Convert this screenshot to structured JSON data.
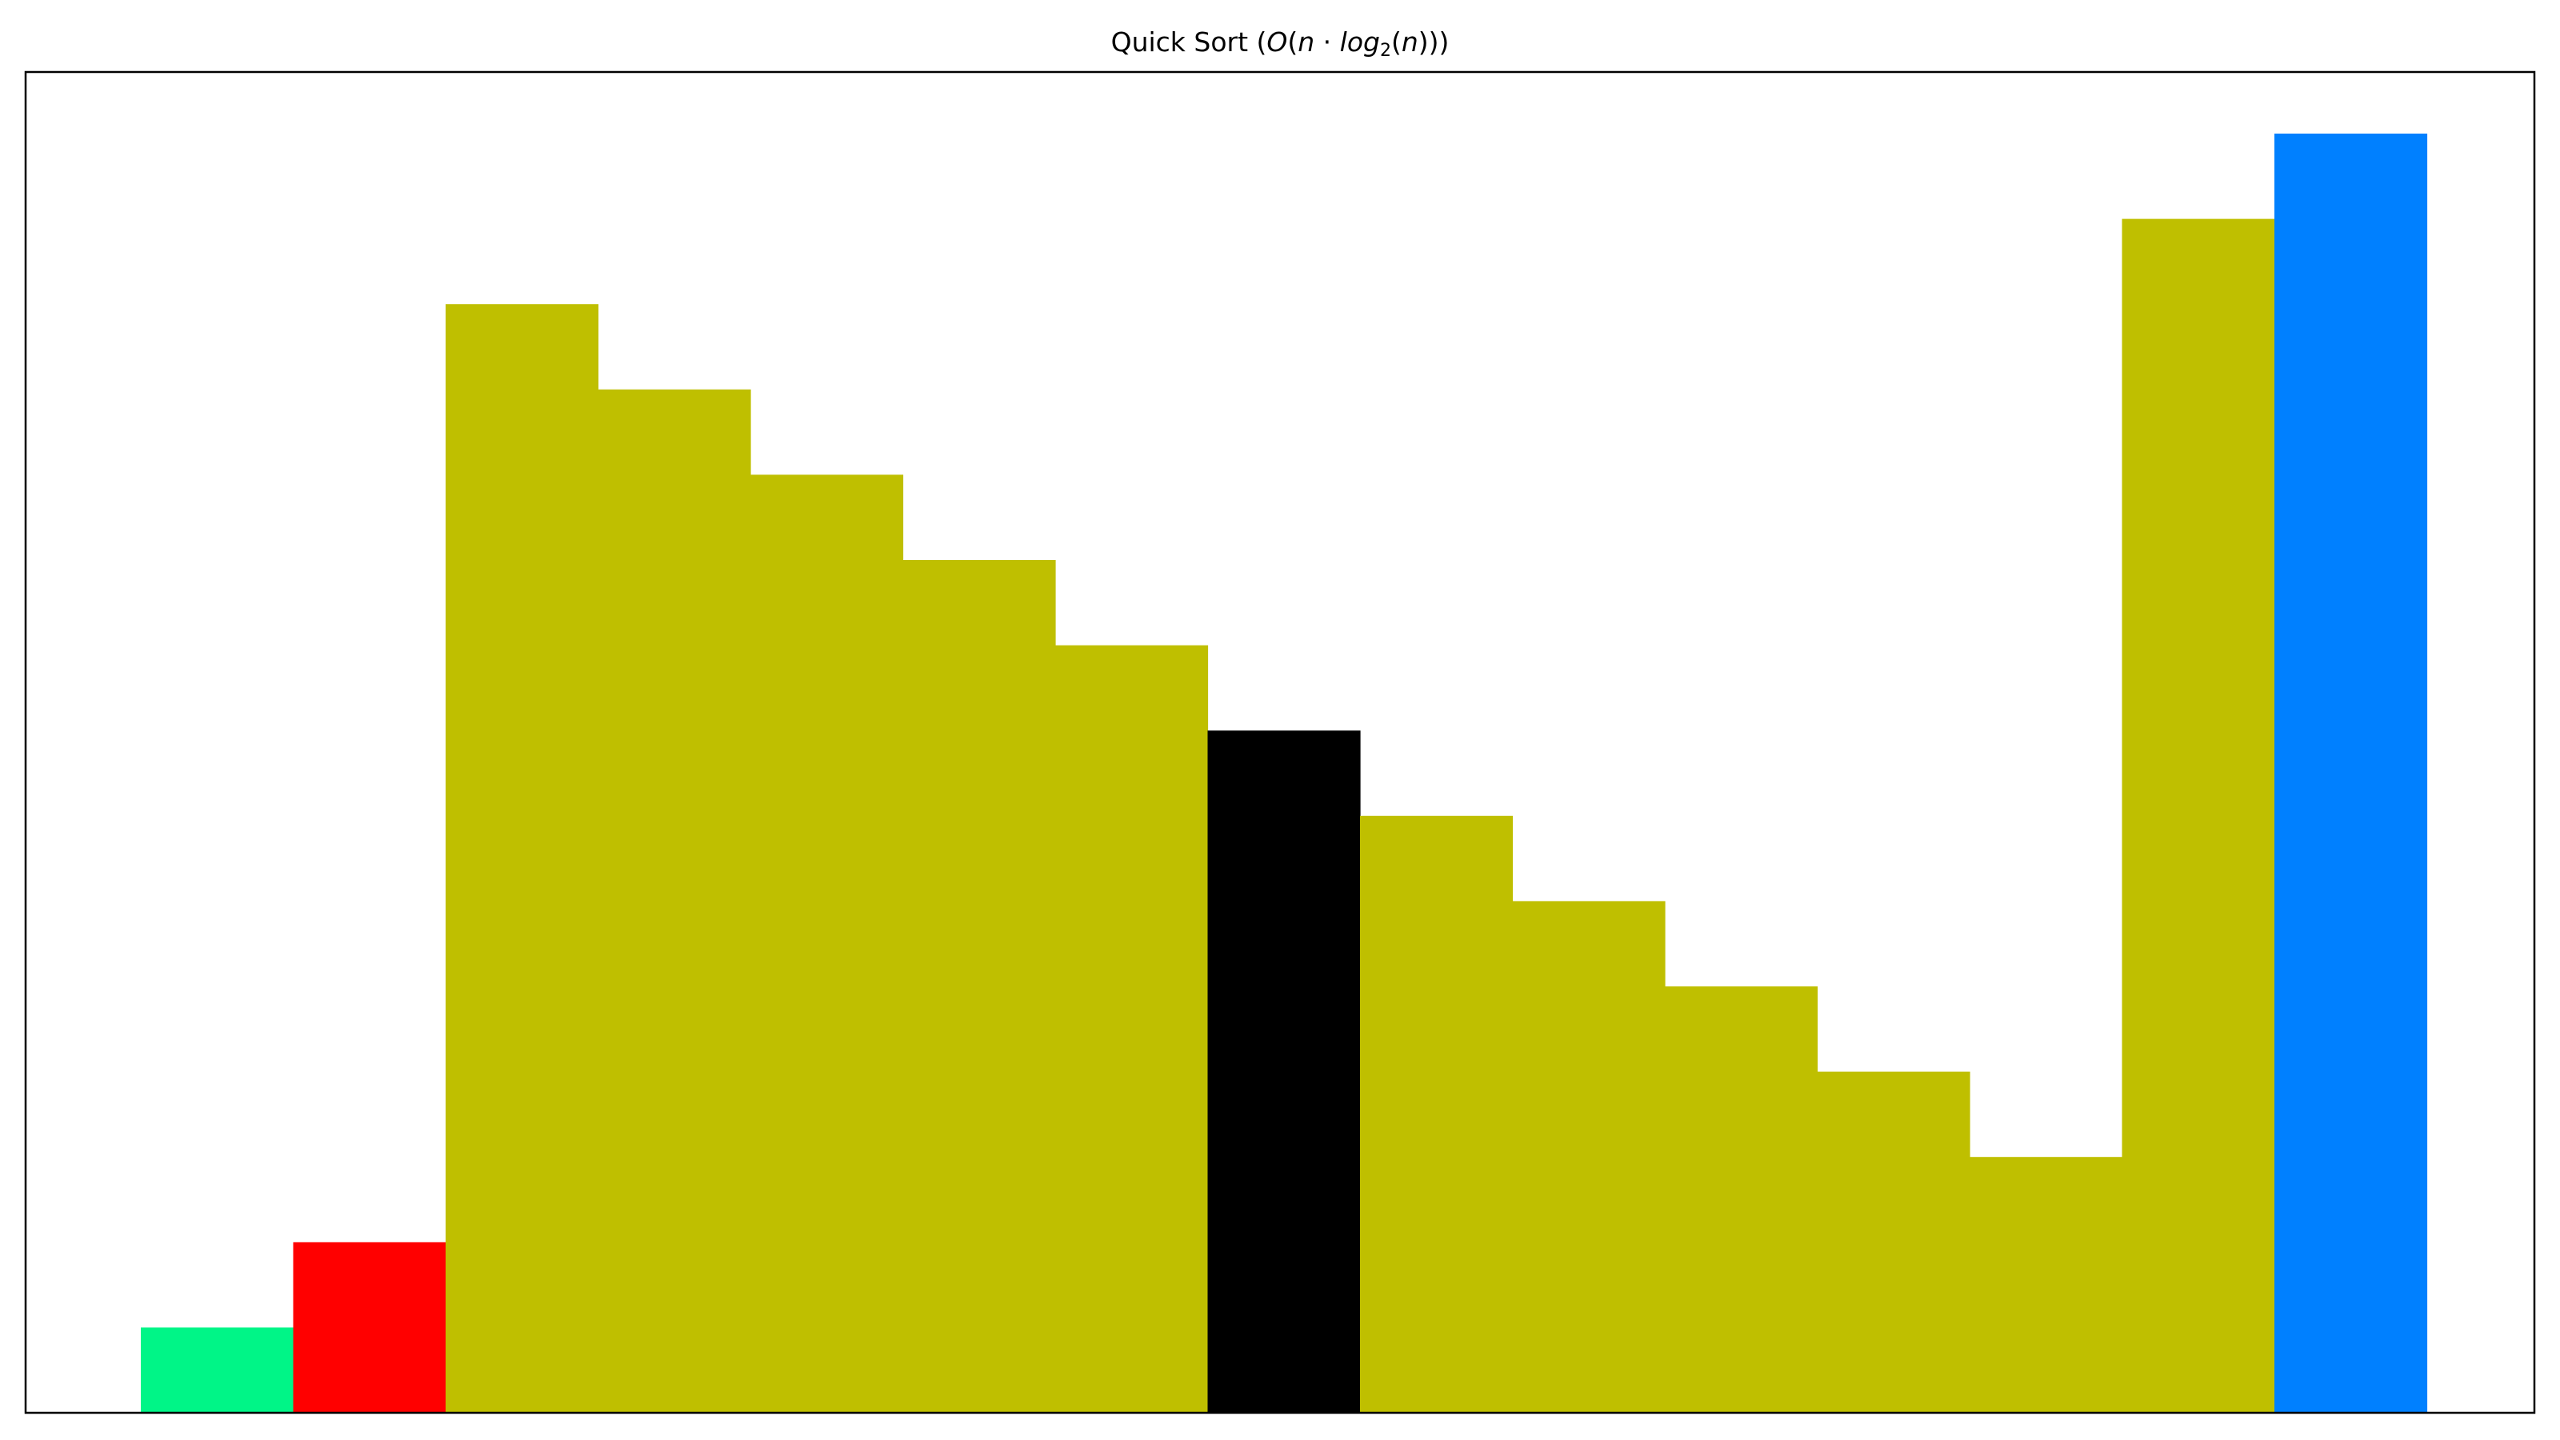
{
  "chart_data": {
    "type": "bar",
    "title": {
      "prefix": "Quick Sort (",
      "big_o": "O",
      "open_paren": "(",
      "n1": "n",
      "dot": " · ",
      "log": "log",
      "base": "2",
      "n2_open": "(",
      "n2": "n",
      "close": ")))"
    },
    "xlabel": "",
    "ylabel": "",
    "ylim": [
      0,
      15
    ],
    "axes_visible": false,
    "grid": false,
    "values": [
      1,
      2,
      13,
      12,
      11,
      10,
      9,
      8,
      7,
      6,
      5,
      4,
      3,
      14,
      15
    ],
    "bar_colors": [
      "#00F587",
      "#FF0000",
      "#BFBF00",
      "#BFBF00",
      "#BFBF00",
      "#BFBF00",
      "#BFBF00",
      "#000000",
      "#BFBF00",
      "#BFBF00",
      "#BFBF00",
      "#BFBF00",
      "#BFBF00",
      "#BFBF00",
      "#0080FF"
    ]
  }
}
